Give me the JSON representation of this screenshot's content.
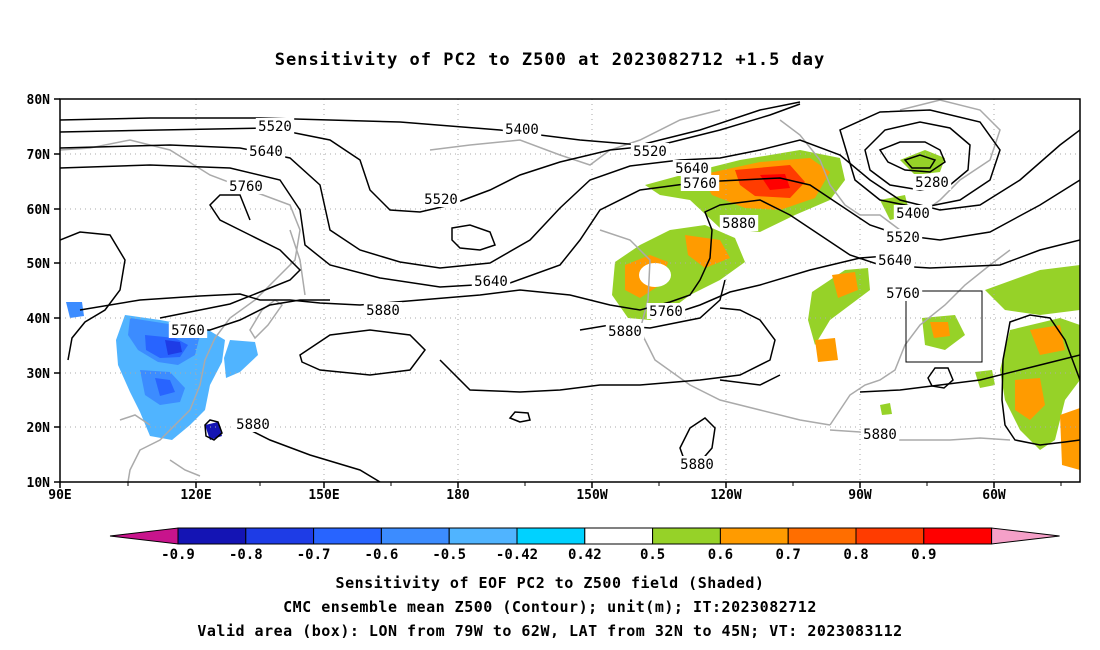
{
  "title": "Sensitivity of PC2 to Z500 at 2023082712 +1.5 day",
  "axes": {
    "lat_ticks": [
      "80N",
      "70N",
      "60N",
      "50N",
      "40N",
      "30N",
      "20N",
      "10N"
    ],
    "lon_ticks": [
      "90E",
      "120E",
      "150E",
      "180",
      "150W",
      "120W",
      "90W",
      "60W"
    ]
  },
  "contours": [
    {
      "label": "5520"
    },
    {
      "label": "5400"
    },
    {
      "label": "5640"
    },
    {
      "label": "5520"
    },
    {
      "label": "5640"
    },
    {
      "label": "5760"
    },
    {
      "label": "5760"
    },
    {
      "label": "5520"
    },
    {
      "label": "5880"
    },
    {
      "label": "5280"
    },
    {
      "label": "5400"
    },
    {
      "label": "5520"
    },
    {
      "label": "5640"
    },
    {
      "label": "5640"
    },
    {
      "label": "5760"
    },
    {
      "label": "5880"
    },
    {
      "label": "5760"
    },
    {
      "label": "5880"
    },
    {
      "label": "5760"
    },
    {
      "label": "5880"
    },
    {
      "label": "5880"
    },
    {
      "label": "5880"
    }
  ],
  "colorbar": {
    "labels": [
      "-0.9",
      "-0.8",
      "-0.7",
      "-0.6",
      "-0.5",
      "-0.42",
      "0.42",
      "0.5",
      "0.6",
      "0.7",
      "0.8",
      "0.9"
    ],
    "colors": [
      "#c8148c",
      "#1414b4",
      "#1e3ce6",
      "#2864ff",
      "#3c8cff",
      "#50b4ff",
      "#00d2ff",
      "#ffffff",
      "#96d228",
      "#ff9b00",
      "#ff6e00",
      "#ff3c00",
      "#ff0000",
      "#f5a0c8"
    ]
  },
  "footer": {
    "line1": "Sensitivity of EOF PC2 to Z500 field (Shaded)",
    "line2": "CMC ensemble mean Z500 (Contour); unit(m); IT:2023082712",
    "line3": "Valid area (box): LON from 79W to 62W, LAT from 32N to 45N; VT: 2023083112"
  }
}
